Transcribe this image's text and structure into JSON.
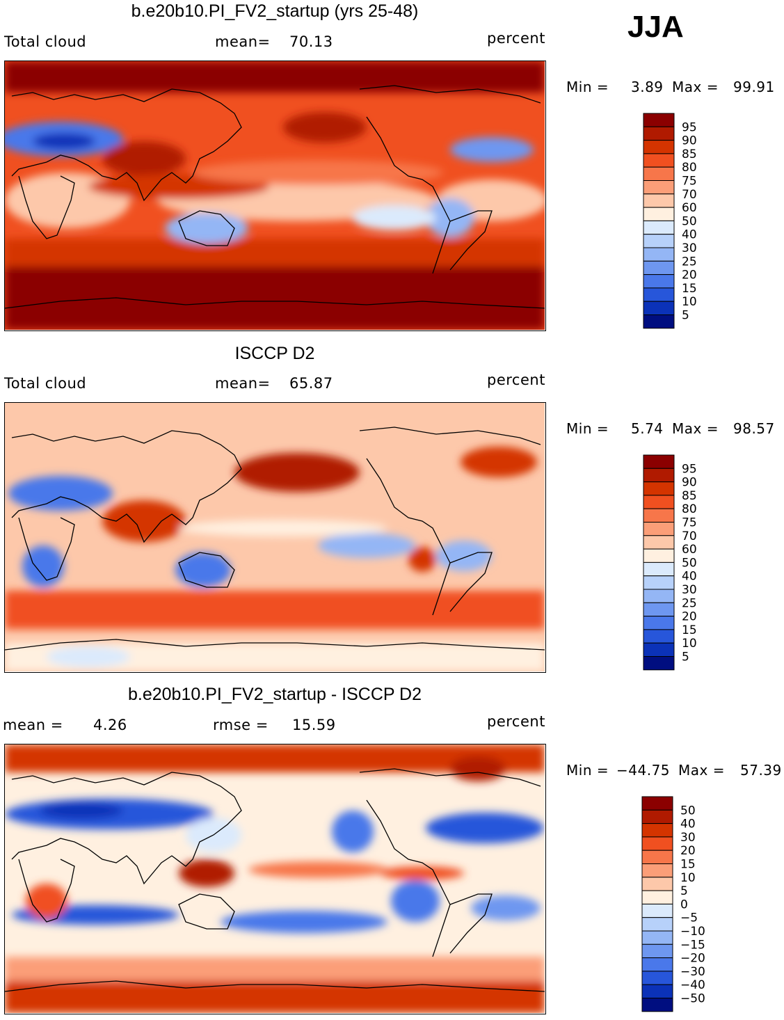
{
  "season": "JJA",
  "panels": [
    {
      "title": "b.e20b10.PI_FV2_startup (yrs 25-48)",
      "left_label": "Total cloud",
      "center_label": "mean=",
      "center_value": "70.13",
      "units": "percent",
      "min_label": "Min =",
      "min_value": "3.89",
      "max_label": "Max =",
      "max_value": "99.91",
      "colorbar_labels": [
        "95",
        "90",
        "85",
        "80",
        "75",
        "70",
        "60",
        "50",
        "40",
        "30",
        "25",
        "20",
        "15",
        "10",
        "5"
      ]
    },
    {
      "title": "ISCCP D2",
      "left_label": "Total cloud",
      "center_label": "mean=",
      "center_value": "65.87",
      "units": "percent",
      "min_label": "Min =",
      "min_value": "5.74",
      "max_label": "Max =",
      "max_value": "98.57",
      "colorbar_labels": [
        "95",
        "90",
        "85",
        "80",
        "75",
        "70",
        "60",
        "50",
        "40",
        "30",
        "25",
        "20",
        "15",
        "10",
        "5"
      ]
    },
    {
      "title": "b.e20b10.PI_FV2_startup - ISCCP D2",
      "left_label": "mean =",
      "left_value": "4.26",
      "center_label": "rmse =",
      "center_value": "15.59",
      "units": "percent",
      "min_label": "Min =",
      "min_value": "−44.75",
      "max_label": "Max =",
      "max_value": "57.39",
      "colorbar_labels": [
        "50",
        "40",
        "30",
        "20",
        "15",
        "10",
        "5",
        "0",
        "−5",
        "−10",
        "−15",
        "−20",
        "−30",
        "−40",
        "−50"
      ]
    }
  ],
  "colors": {
    "palette_top_to_bottom": [
      "#8b0000",
      "#b01a00",
      "#d43400",
      "#f05020",
      "#f7764a",
      "#fb9e78",
      "#fdc8aa",
      "#fff0e0",
      "#dbeafc",
      "#b7d1fa",
      "#94b6f5",
      "#6e97f0",
      "#4a78ea",
      "#2756da",
      "#0b32b8",
      "#000e80"
    ],
    "coast": "#000000"
  }
}
